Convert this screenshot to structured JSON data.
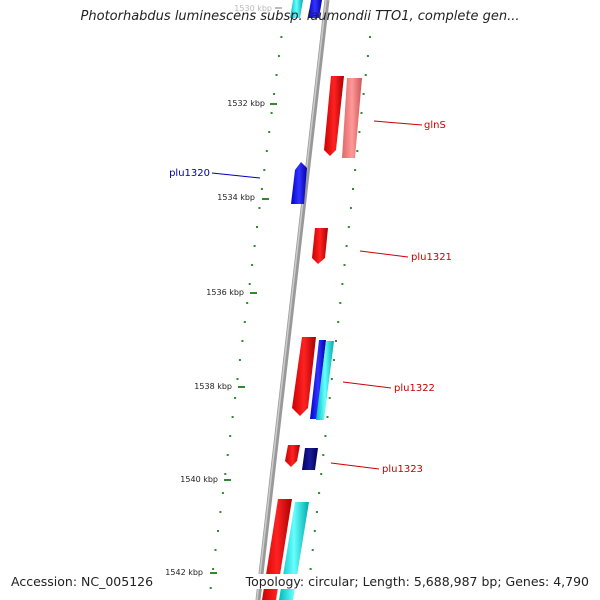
{
  "title": "Photorhabdus luminescens subsp. laumondii TTO1, complete gen...",
  "footer": {
    "accession": "Accession: NC_005126",
    "topology": "Topology: circular; Length: 5,688,987 bp; Genes: 4,790"
  },
  "ticks": [
    {
      "label": "1530 kbp",
      "faded": true
    },
    {
      "label": "1532 kbp"
    },
    {
      "label": "1534 kbp"
    },
    {
      "label": "1536 kbp"
    },
    {
      "label": "1538 kbp"
    },
    {
      "label": "1540 kbp"
    },
    {
      "label": "1542 kbp"
    }
  ],
  "gene_labels": [
    {
      "name": "glnS",
      "color": "#cc0000"
    },
    {
      "name": "plu1320",
      "color": "#0000aa"
    },
    {
      "name": "plu1321",
      "color": "#cc0000"
    },
    {
      "name": "plu1322",
      "color": "#cc0000"
    },
    {
      "name": "plu1323",
      "color": "#cc0000"
    }
  ],
  "colors": {
    "forward_gene": "#ee0000",
    "reverse_gene": "#1a1aee",
    "highlight_gene": "#00cccc",
    "pseudo_gene": "#f08080",
    "dark_gene": "#000080",
    "tick": "#2e8b2e",
    "backbone": "#888888"
  }
}
